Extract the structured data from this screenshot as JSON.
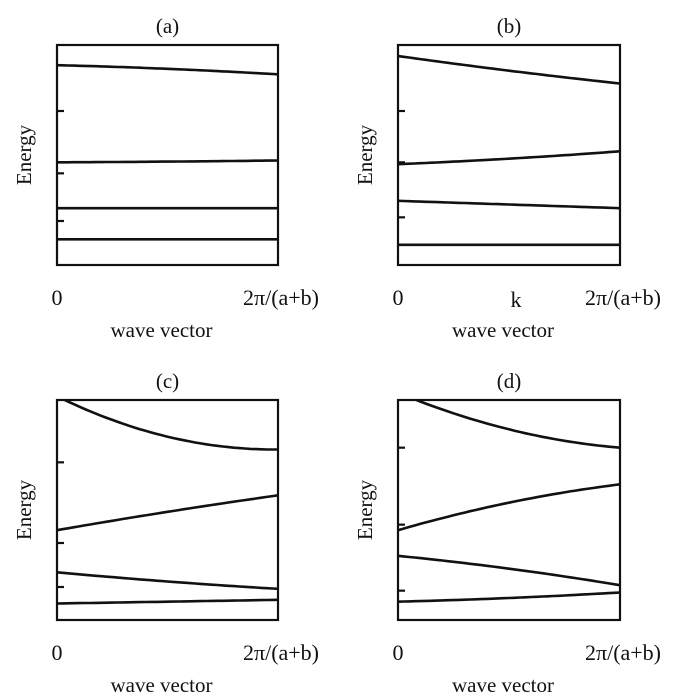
{
  "chart_data": [
    {
      "type": "line",
      "title": "(a)",
      "ylabel": "Energy",
      "xlabel": "wave vector",
      "xtick_labels": [
        "0",
        "2π/(a+b)"
      ],
      "extra_label": "",
      "yticks": [
        4.2,
        2.5,
        1.2
      ],
      "x": [
        0,
        0.5,
        1
      ],
      "series": [
        {
          "values": [
            0.7,
            0.7,
            0.7
          ]
        },
        {
          "values": [
            1.55,
            1.55,
            1.55
          ]
        },
        {
          "values": [
            2.8,
            2.82,
            2.85
          ]
        },
        {
          "values": [
            5.45,
            5.35,
            5.2
          ]
        }
      ]
    },
    {
      "type": "line",
      "title": "(b)",
      "ylabel": "Energy",
      "xlabel": "wave vector",
      "xtick_labels": [
        "0",
        "2π/(a+b)"
      ],
      "extra_label": "k",
      "yticks": [
        4.2,
        2.8,
        1.3
      ],
      "x": [
        0,
        0.5,
        1
      ],
      "series": [
        {
          "values": [
            0.55,
            0.55,
            0.55
          ]
        },
        {
          "values": [
            1.75,
            1.65,
            1.55
          ]
        },
        {
          "values": [
            2.75,
            2.9,
            3.1
          ]
        },
        {
          "values": [
            5.7,
            5.3,
            4.95
          ]
        }
      ]
    },
    {
      "type": "line",
      "title": "(c)",
      "ylabel": "Energy",
      "xlabel": "wave vector",
      "xtick_labels": [
        "0",
        "2π/(a+b)"
      ],
      "extra_label": "",
      "yticks": [
        4.3,
        2.1,
        0.9
      ],
      "x": [
        0,
        0.5,
        1
      ],
      "series": [
        {
          "values": [
            0.45,
            0.5,
            0.55
          ]
        },
        {
          "values": [
            1.3,
            1.05,
            0.85
          ]
        },
        {
          "values": [
            2.45,
            2.95,
            3.4
          ]
        },
        {
          "values": [
            6.1,
            5.0,
            4.65
          ]
        }
      ]
    },
    {
      "type": "line",
      "title": "(d)",
      "ylabel": "Energy",
      "xlabel": "wave vector",
      "xtick_labels": [
        "0",
        "2π/(a+b)"
      ],
      "extra_label": "",
      "yticks": [
        4.7,
        2.6,
        0.8
      ],
      "x": [
        0,
        0.5,
        1
      ],
      "series": [
        {
          "values": [
            0.5,
            0.6,
            0.75
          ]
        },
        {
          "values": [
            1.75,
            1.4,
            0.95
          ]
        },
        {
          "values": [
            2.45,
            3.2,
            3.7
          ]
        },
        {
          "values": [
            6.2,
            5.2,
            4.7
          ]
        }
      ]
    }
  ]
}
